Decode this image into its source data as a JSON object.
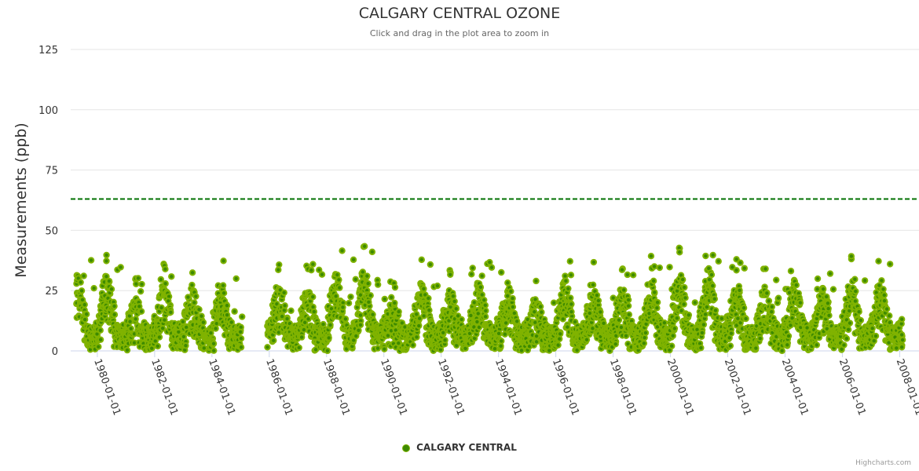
{
  "chart_data": {
    "type": "scatter",
    "title": "CALGARY CENTRAL OZONE",
    "subtitle": "Click and drag in the plot area to zoom in",
    "xlabel": "",
    "ylabel": "Measurements (ppb)",
    "ylim": [
      0,
      125
    ],
    "xlim": [
      1979.07,
      2008.4
    ],
    "y_ticks": [
      "0",
      "25",
      "50",
      "75",
      "100",
      "125"
    ],
    "x_ticks": [
      "1980-01-01",
      "1982-01-01",
      "1984-01-01",
      "1986-01-01",
      "1988-01-01",
      "1990-01-01",
      "1992-01-01",
      "1994-01-01",
      "1996-01-01",
      "1998-01-01",
      "2000-01-01",
      "2002-01-01",
      "2004-01-01",
      "2006-01-01",
      "2008-01-01"
    ],
    "grid": true,
    "legend_placement": "bottom-center",
    "threshold_line": {
      "value": 63,
      "style": "dashed",
      "color": "#007000"
    },
    "series": [
      {
        "name": "CALGARY CENTRAL",
        "color": "#80b300",
        "marker_color": "#3d8a00",
        "segments": [
          [
            1979.26,
            1985.04
          ],
          [
            1985.92,
            2008.1
          ]
        ],
        "annual_max": {
          "1979": 42,
          "1980": 42,
          "1981": 31,
          "1982": 38,
          "1983": 35,
          "1984": 38,
          "1986": 36,
          "1987": 36,
          "1988": 45,
          "1989": 46,
          "1990": 30,
          "1991": 38,
          "1992": 34,
          "1993": 38,
          "1994": 36,
          "1995": 30,
          "1996": 39,
          "1997": 37,
          "1998": 35,
          "1999": 41,
          "2000": 43,
          "2001": 46,
          "2002": 38,
          "2003": 37,
          "2004": 40,
          "2005": 35,
          "2006": 40,
          "2007": 39,
          "2008": 26
        }
      }
    ]
  },
  "credits": "Highcharts.com"
}
